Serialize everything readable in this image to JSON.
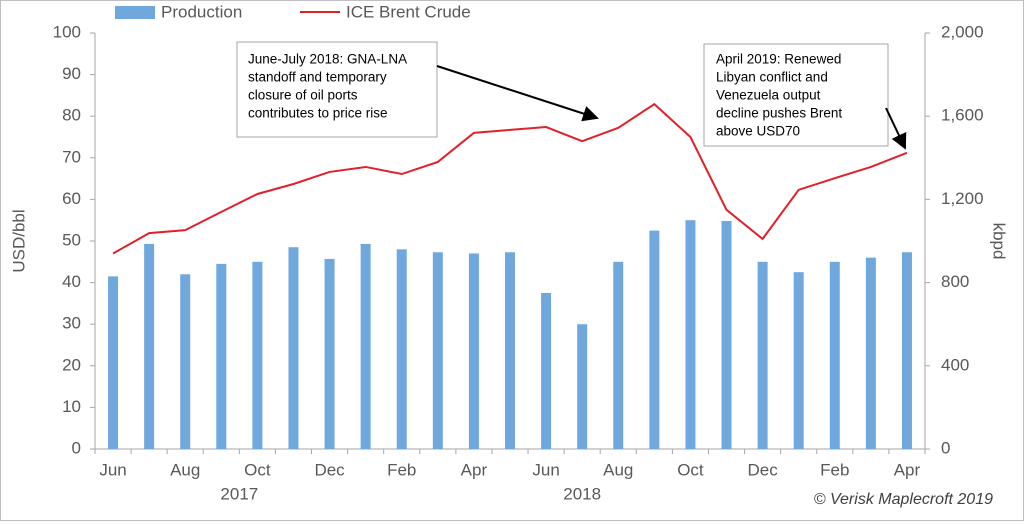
{
  "chart_data": {
    "type": "bar-line",
    "categories": [
      "Jun",
      null,
      "Aug",
      null,
      "Oct",
      null,
      "Dec",
      null,
      "Feb",
      null,
      "Apr",
      null,
      "Jun",
      null,
      "Aug",
      null,
      "Oct",
      null,
      "Dec",
      null,
      "Feb",
      null,
      "Apr"
    ],
    "year_labels": [
      "2017",
      "2018"
    ],
    "series": [
      {
        "name": "Production",
        "color": "#6fa8dc",
        "axis": "y2",
        "kind": "bar",
        "values": [
          830,
          986,
          840,
          890,
          900,
          970,
          914,
          986,
          960,
          946,
          940,
          946,
          750,
          600,
          900,
          1050,
          1100,
          1096,
          900,
          850,
          900,
          920,
          946
        ]
      },
      {
        "name": "ICE Brent Crude",
        "color": "#e0202a",
        "axis": "y",
        "kind": "line",
        "values": [
          47,
          51.9,
          52.6,
          57,
          61.3,
          63.7,
          66.6,
          67.8,
          66.1,
          69,
          76,
          76.7,
          77.4,
          74,
          77.2,
          82.9,
          75,
          57.5,
          50.5,
          62.3,
          65.1,
          67.8,
          71.2
        ]
      }
    ],
    "ylabel": "USD/bbl",
    "y2label": "kbpd",
    "ylim": [
      0,
      100
    ],
    "yticks": [
      0,
      10,
      20,
      30,
      40,
      50,
      60,
      70,
      80,
      90,
      100
    ],
    "y2lim": [
      0,
      2000
    ],
    "y2ticks": [
      0,
      400,
      800,
      {
        "value": 1200,
        "label": "1,200"
      },
      {
        "value": 1600,
        "label": "1,600"
      },
      {
        "value": 2000,
        "label": "2,000"
      }
    ],
    "annotations": [
      {
        "lines": [
          "June-July 2018: GNA-LNA",
          "standoff and temporary",
          "closure of oil ports",
          "contributes to price rise"
        ]
      },
      {
        "lines": [
          "April 2019: Renewed",
          "Libyan conflict and",
          "Venezuela output",
          "decline pushes Brent",
          "above USD70"
        ]
      }
    ],
    "source": "©  Verisk Maplecroft 2019"
  }
}
